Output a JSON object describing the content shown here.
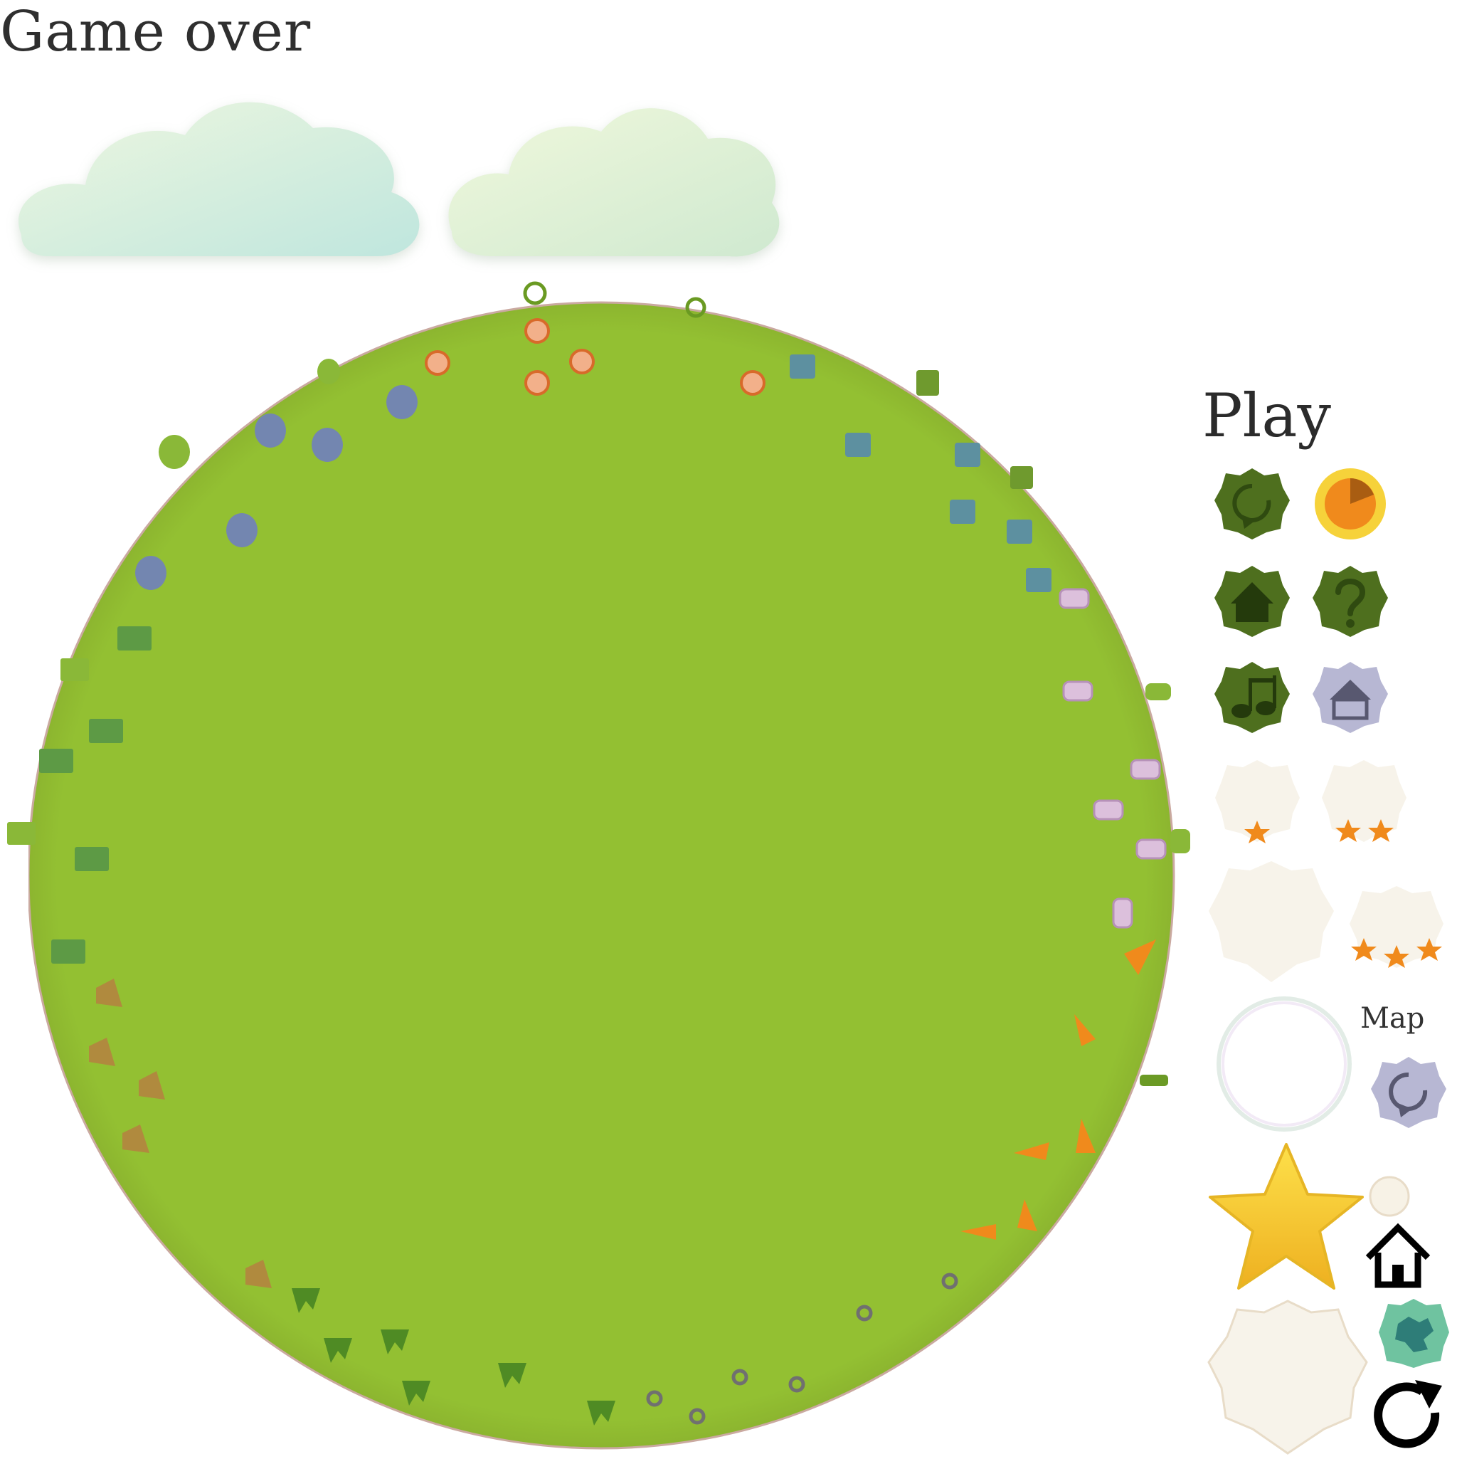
{
  "screen": {
    "title": "Game over",
    "play_label": "Play",
    "map_label": "Map"
  },
  "colors": {
    "planet": "#93c032",
    "button_dark": "#4e6f1e",
    "button_lilac": "#b7b7d3",
    "button_cream": "#f7f3ea",
    "star_gold": "#f3c61a",
    "carrot": "#f08a1c",
    "cloud": "#dff0d6"
  },
  "menu_buttons": [
    {
      "icon": "restart-icon",
      "style": "dark"
    },
    {
      "icon": "sun-timer-icon",
      "style": "sun"
    },
    {
      "icon": "home-icon",
      "style": "dark"
    },
    {
      "icon": "help-icon",
      "style": "dark"
    },
    {
      "icon": "music-icon",
      "style": "dark"
    },
    {
      "icon": "home-icon",
      "style": "lilac"
    },
    {
      "icon": "one-star-icon",
      "style": "cream",
      "stars": 1
    },
    {
      "icon": "two-star-icon",
      "style": "cream",
      "stars": 2
    },
    {
      "icon": "blank-badge-icon",
      "style": "cream",
      "stars": 0
    },
    {
      "icon": "three-star-icon",
      "style": "cream",
      "stars": 3
    }
  ],
  "items_on_planet": [
    "lollipop-icon",
    "ghost-icon",
    "calculator-icon",
    "marshmallow-icon",
    "carrot-icon",
    "scissors-icon",
    "grass-icon",
    "rock-icon",
    "building-icon"
  ]
}
